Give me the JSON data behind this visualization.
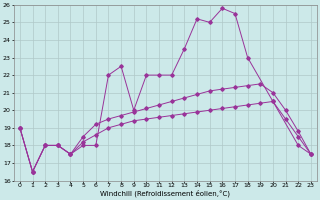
{
  "xlabel": "Windchill (Refroidissement éolien,°C)",
  "xlim": [
    -0.5,
    23.5
  ],
  "ylim": [
    16,
    26
  ],
  "xticks": [
    0,
    1,
    2,
    3,
    4,
    5,
    6,
    7,
    8,
    9,
    10,
    11,
    12,
    13,
    14,
    15,
    16,
    17,
    18,
    19,
    20,
    21,
    22,
    23
  ],
  "yticks": [
    16,
    17,
    18,
    19,
    20,
    21,
    22,
    23,
    24,
    25,
    26
  ],
  "bg_color": "#cce9e9",
  "line_color": "#993399",
  "grid_color": "#b0c8c8",
  "line1_x": [
    0,
    1,
    2,
    3,
    4,
    5,
    6,
    7,
    8,
    9,
    10,
    11,
    12,
    13,
    14,
    15,
    16,
    17,
    18,
    20,
    22,
    23
  ],
  "line1_y": [
    19.0,
    16.5,
    18.0,
    18.0,
    17.5,
    18.0,
    18.0,
    22.0,
    22.5,
    20.0,
    22.0,
    22.0,
    22.0,
    23.5,
    25.2,
    25.0,
    25.8,
    25.5,
    23.0,
    20.5,
    18.0,
    17.5
  ],
  "line2_x": [
    0,
    1,
    2,
    3,
    4,
    5,
    6,
    7,
    8,
    9,
    10,
    11,
    12,
    13,
    14,
    15,
    16,
    17,
    18,
    19,
    20,
    21,
    22,
    23
  ],
  "line2_y": [
    19.0,
    16.5,
    18.0,
    18.0,
    17.5,
    18.5,
    19.2,
    19.5,
    19.7,
    19.9,
    20.1,
    20.3,
    20.5,
    20.7,
    20.9,
    21.1,
    21.2,
    21.3,
    21.4,
    21.5,
    21.0,
    20.0,
    18.8,
    17.5
  ],
  "line3_x": [
    0,
    1,
    2,
    3,
    4,
    5,
    6,
    7,
    8,
    9,
    10,
    11,
    12,
    13,
    14,
    15,
    16,
    17,
    18,
    19,
    20,
    21,
    22,
    23
  ],
  "line3_y": [
    19.0,
    16.5,
    18.0,
    18.0,
    17.5,
    18.2,
    18.6,
    19.0,
    19.2,
    19.4,
    19.5,
    19.6,
    19.7,
    19.8,
    19.9,
    20.0,
    20.1,
    20.2,
    20.3,
    20.4,
    20.5,
    19.5,
    18.5,
    17.5
  ]
}
